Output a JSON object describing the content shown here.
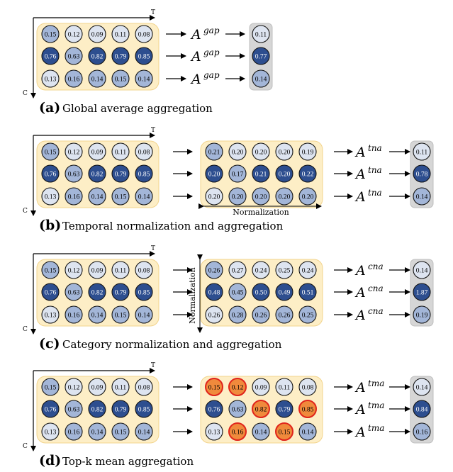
{
  "axis": {
    "t_label": "T",
    "c_label": "C"
  },
  "normalization_label": "Normalization",
  "colors": {
    "dark": "#2d4e8f",
    "mid": "#a3b6d8",
    "light": "#dde4f0",
    "orange": "#f08a3c",
    "panel": "#fdeec6",
    "panel_border": "#f2d48c",
    "result_box": "#d6d6d6",
    "highlight_border": "#e0241b"
  },
  "panels": [
    {
      "letter": "(a)",
      "caption": "Global average aggregation",
      "operator": "gap",
      "input": [
        [
          "0.15",
          "0.12",
          "0.09",
          "0.11",
          "0.08"
        ],
        [
          "0.76",
          "0.63",
          "0.82",
          "0.79",
          "0.85"
        ],
        [
          "0.13",
          "0.16",
          "0.14",
          "0.15",
          "0.14"
        ]
      ],
      "input_shade": [
        [
          "mid",
          "light",
          "light",
          "light",
          "light"
        ],
        [
          "dark",
          "mid",
          "dark",
          "dark",
          "dark"
        ],
        [
          "light",
          "mid",
          "mid",
          "mid",
          "mid"
        ]
      ],
      "result": [
        "0.11",
        "0.77",
        "0.14"
      ],
      "result_shade": [
        "light",
        "dark",
        "mid"
      ]
    },
    {
      "letter": "(b)",
      "caption": "Temporal normalization and aggregation",
      "operator": "tna",
      "input": [
        [
          "0.15",
          "0.12",
          "0.09",
          "0.11",
          "0.08"
        ],
        [
          "0.76",
          "0.63",
          "0.82",
          "0.79",
          "0.85"
        ],
        [
          "0.13",
          "0.16",
          "0.14",
          "0.15",
          "0.14"
        ]
      ],
      "input_shade": [
        [
          "mid",
          "light",
          "light",
          "light",
          "light"
        ],
        [
          "dark",
          "mid",
          "dark",
          "dark",
          "dark"
        ],
        [
          "light",
          "mid",
          "mid",
          "mid",
          "mid"
        ]
      ],
      "middle": [
        [
          "0.21",
          "0.20",
          "0.20",
          "0.20",
          "0.19"
        ],
        [
          "0.20",
          "0.17",
          "0.21",
          "0.20",
          "0.22"
        ],
        [
          "0.20",
          "0.20",
          "0.20",
          "0.20",
          "0.20"
        ]
      ],
      "middle_shade": [
        [
          "mid",
          "light",
          "light",
          "light",
          "light"
        ],
        [
          "dark",
          "mid",
          "dark",
          "dark",
          "dark"
        ],
        [
          "light",
          "mid",
          "mid",
          "mid",
          "mid"
        ]
      ],
      "norm_dir": "horizontal",
      "result": [
        "0.11",
        "0.78",
        "0.14"
      ],
      "result_shade": [
        "light",
        "dark",
        "mid"
      ]
    },
    {
      "letter": "(c)",
      "caption": "Category normalization and aggregation",
      "operator": "cna",
      "input": [
        [
          "0.15",
          "0.12",
          "0.09",
          "0.11",
          "0.08"
        ],
        [
          "0.76",
          "0.63",
          "0.82",
          "0.79",
          "0.85"
        ],
        [
          "0.13",
          "0.16",
          "0.14",
          "0.15",
          "0.14"
        ]
      ],
      "input_shade": [
        [
          "mid",
          "light",
          "light",
          "light",
          "light"
        ],
        [
          "dark",
          "mid",
          "dark",
          "dark",
          "dark"
        ],
        [
          "light",
          "mid",
          "mid",
          "mid",
          "mid"
        ]
      ],
      "middle": [
        [
          "0.26",
          "0.27",
          "0.24",
          "0.25",
          "0.24"
        ],
        [
          "0.48",
          "0.45",
          "0.50",
          "0.49",
          "0.51"
        ],
        [
          "0.26",
          "0.28",
          "0.26",
          "0.26",
          "0.25"
        ]
      ],
      "middle_shade": [
        [
          "mid",
          "light",
          "light",
          "light",
          "light"
        ],
        [
          "dark",
          "mid",
          "dark",
          "dark",
          "dark"
        ],
        [
          "light",
          "mid",
          "mid",
          "mid",
          "mid"
        ]
      ],
      "norm_dir": "vertical",
      "result": [
        "0.14",
        "1.87",
        "0.19"
      ],
      "result_shade": [
        "light",
        "dark",
        "mid"
      ]
    },
    {
      "letter": "(d)",
      "caption": "Top-k mean aggregation",
      "operator": "tma",
      "input": [
        [
          "0.15",
          "0.12",
          "0.09",
          "0.11",
          "0.08"
        ],
        [
          "0.76",
          "0.63",
          "0.82",
          "0.79",
          "0.85"
        ],
        [
          "0.13",
          "0.16",
          "0.14",
          "0.15",
          "0.14"
        ]
      ],
      "input_shade": [
        [
          "mid",
          "light",
          "light",
          "light",
          "light"
        ],
        [
          "dark",
          "mid",
          "dark",
          "dark",
          "dark"
        ],
        [
          "light",
          "mid",
          "mid",
          "mid",
          "mid"
        ]
      ],
      "middle": [
        [
          "0.15",
          "0.12",
          "0.09",
          "0.11",
          "0.08"
        ],
        [
          "0.76",
          "0.63",
          "0.82",
          "0.79",
          "0.85"
        ],
        [
          "0.13",
          "0.16",
          "0.14",
          "0.15",
          "0.14"
        ]
      ],
      "middle_shade": [
        [
          "orange",
          "orange",
          "light",
          "light",
          "light"
        ],
        [
          "dark",
          "mid",
          "orange",
          "dark",
          "orange"
        ],
        [
          "light",
          "orange",
          "mid",
          "orange",
          "mid"
        ]
      ],
      "middle_highlight": [
        [
          true,
          true,
          false,
          false,
          false
        ],
        [
          false,
          false,
          true,
          false,
          true
        ],
        [
          false,
          true,
          false,
          true,
          false
        ]
      ],
      "result": [
        "0.14",
        "0.84",
        "0.16"
      ],
      "result_shade": [
        "light",
        "dark",
        "mid"
      ]
    }
  ]
}
